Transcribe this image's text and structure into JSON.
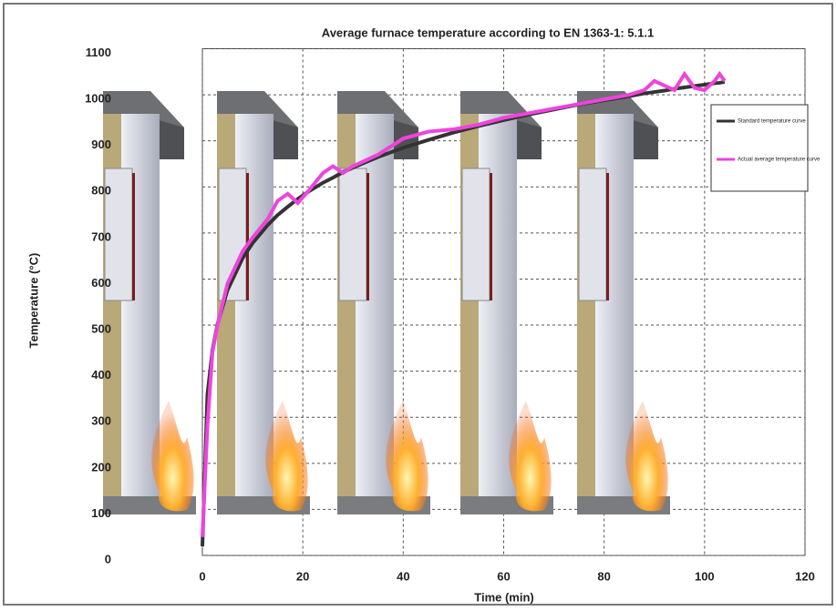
{
  "chart_data": {
    "type": "line",
    "title": "Average furnace temperature according to EN 1363-1:  5.1.1",
    "x_label": "Time (min)",
    "y_label": "Temperature (°C)",
    "x": [
      0,
      1,
      2,
      3,
      5,
      8,
      10,
      13,
      15,
      17,
      19,
      21,
      24,
      26,
      28,
      30,
      35,
      40,
      45,
      50,
      55,
      60,
      65,
      70,
      75,
      80,
      85,
      88,
      90,
      92,
      94,
      96,
      98,
      100,
      102,
      103,
      104
    ],
    "series": [
      {
        "name": "Standard temperature curve",
        "color": "#333333",
        "values": [
          20,
          349,
          445,
          502,
          576,
          645,
          678,
          717,
          739,
          757,
          774,
          789,
          809,
          820,
          832,
          842,
          865,
          885,
          902,
          918,
          932,
          945,
          957,
          968,
          979,
          988,
          997,
          1003,
          1006,
          1009,
          1013,
          1016,
          1019,
          1022,
          1025,
          1026,
          1028
        ]
      },
      {
        "name": "Actual average temperature curve",
        "color": "#ee44dd",
        "values": [
          40,
          280,
          440,
          500,
          590,
          660,
          690,
          730,
          770,
          785,
          765,
          790,
          830,
          845,
          830,
          845,
          870,
          905,
          920,
          925,
          935,
          950,
          960,
          970,
          980,
          990,
          1000,
          1010,
          1030,
          1020,
          1010,
          1045,
          1015,
          1010,
          1030,
          1045,
          1030
        ]
      }
    ],
    "xlim": [
      0,
      120
    ],
    "xticks": [
      0,
      20,
      40,
      60,
      80,
      100,
      120
    ],
    "ylim": [
      0,
      1100
    ],
    "yticks": [
      0,
      100,
      200,
      300,
      400,
      500,
      600,
      700,
      800,
      900,
      1000,
      1100
    ],
    "grid": true,
    "legend": "upper right"
  }
}
